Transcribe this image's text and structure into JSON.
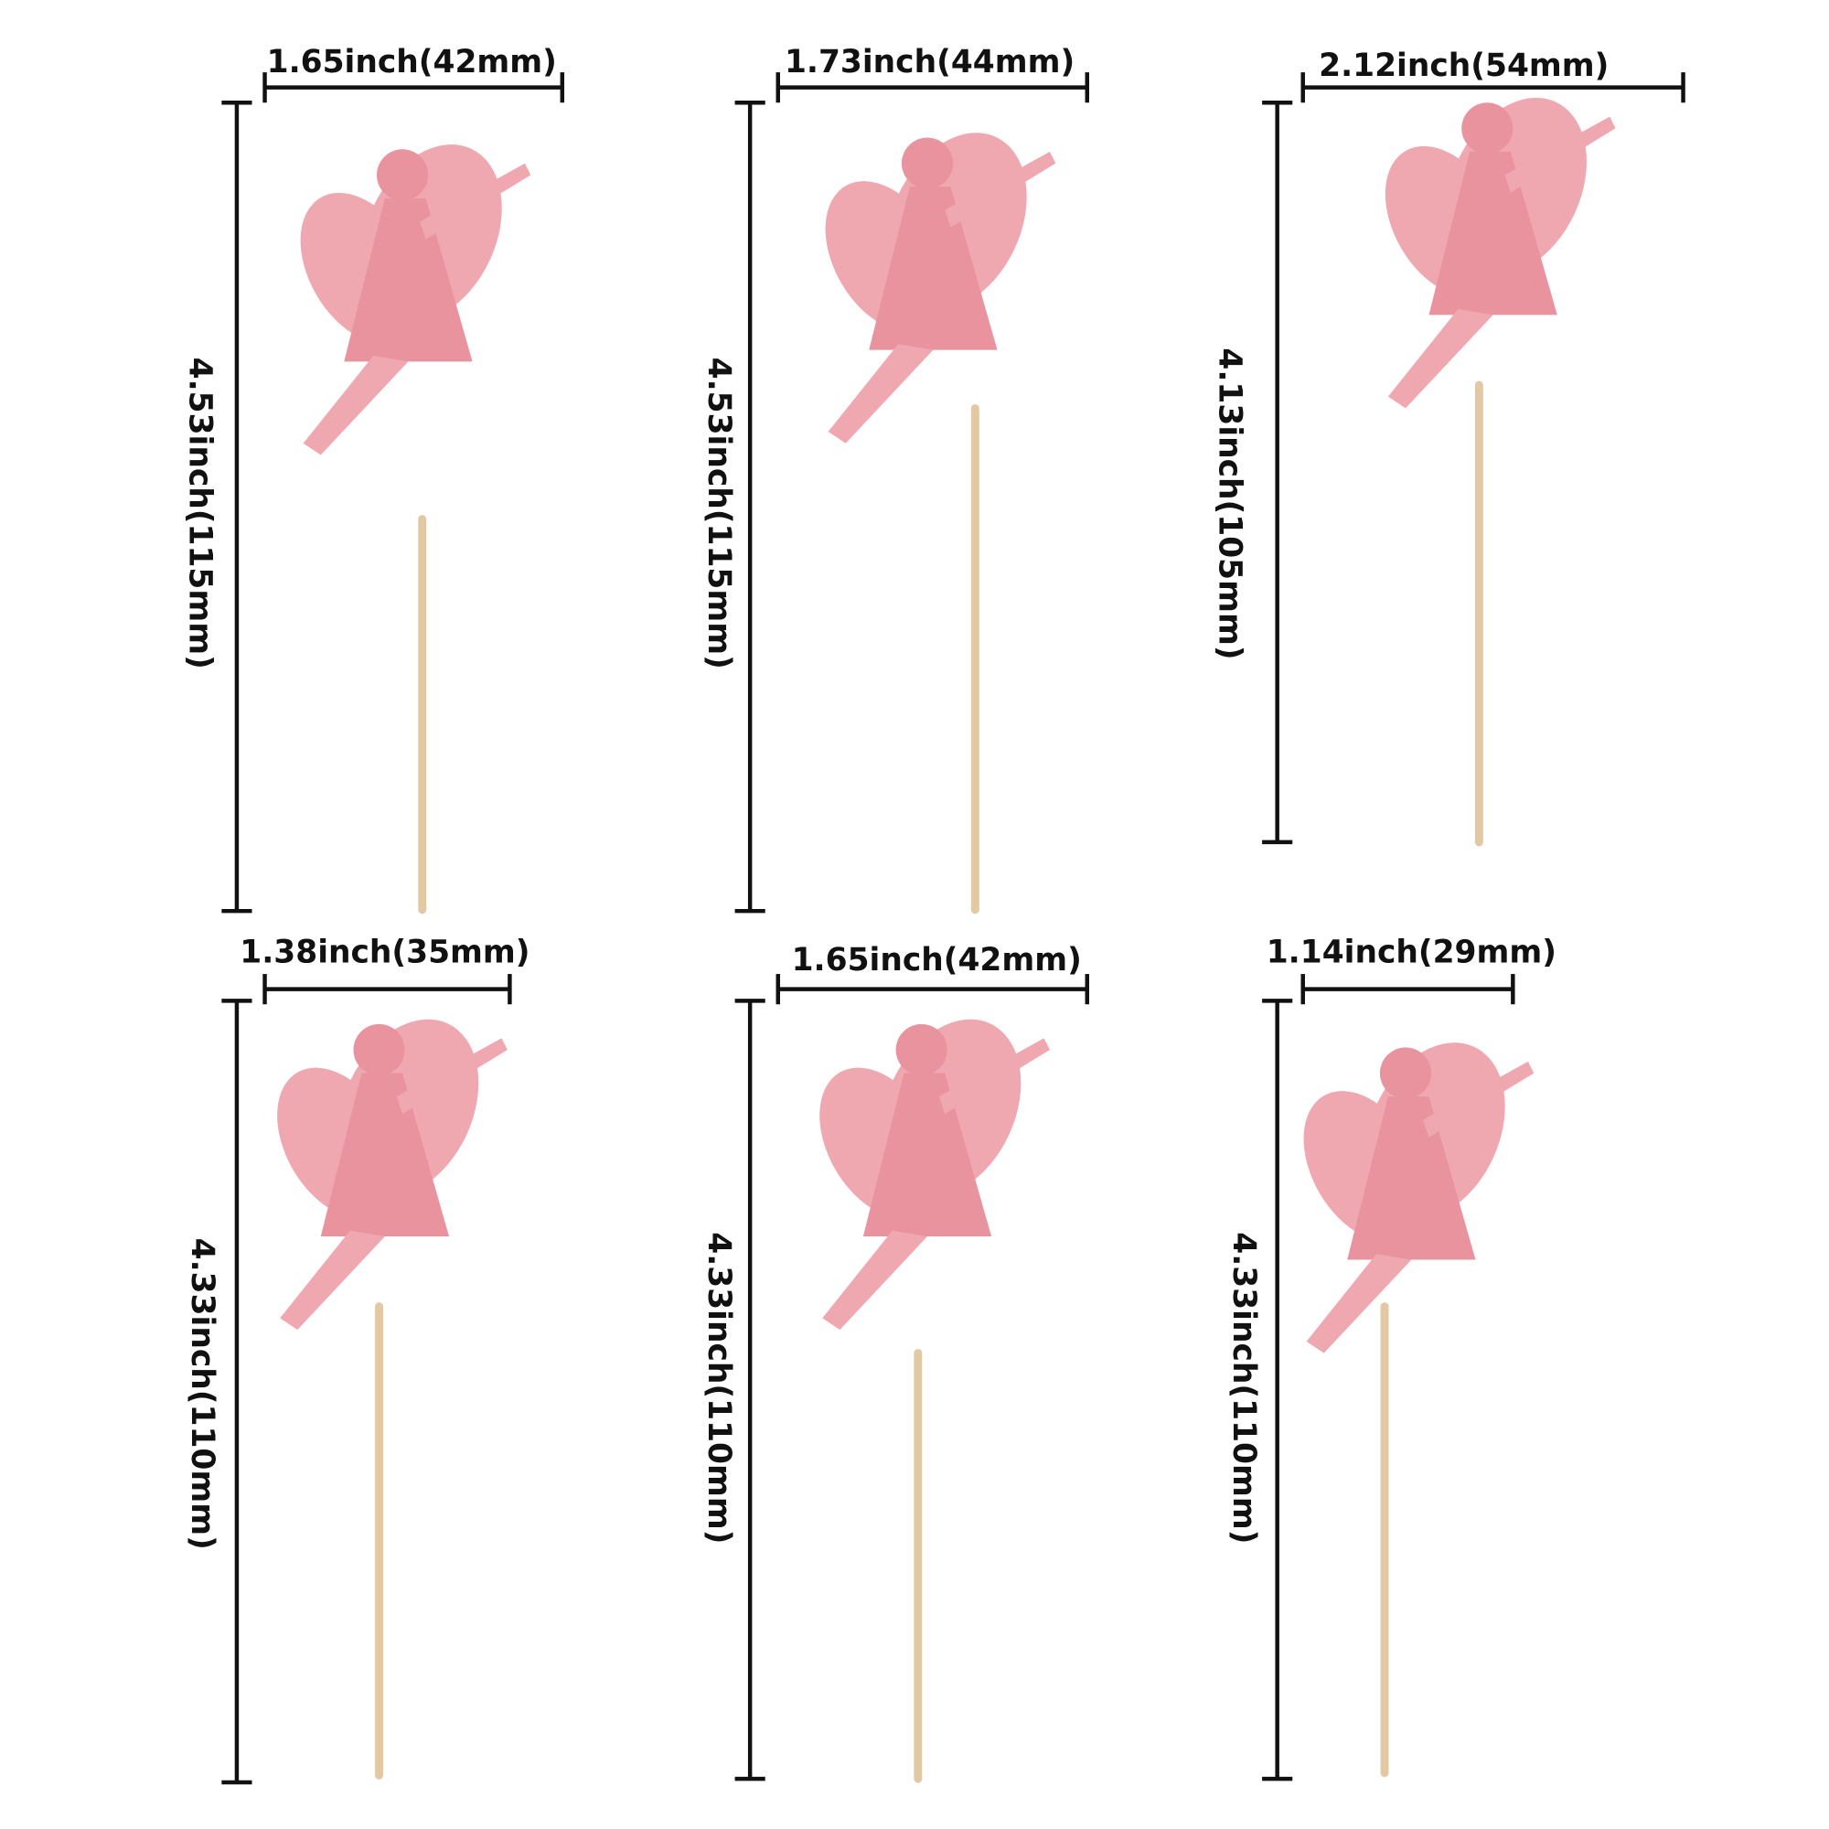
{
  "colors": {
    "glitter": "#f0a8b0",
    "glitter_shade": "#e8939e",
    "stick": "#e3c9a3",
    "dimension_lines": "#111111"
  },
  "toppers": [
    {
      "shape": "fairy sitting on mushroom with butterfly",
      "width_label": "1.65inch(42mm)",
      "height_label": "4.53inch(115mm)"
    },
    {
      "shape": "flying fairy with open wings",
      "width_label": "1.73inch(44mm)",
      "height_label": "4.53inch(115mm)"
    },
    {
      "shape": "sitting fairy with butterfly wings",
      "width_label": "2.12inch(54mm)",
      "height_label": "4.13inch(105mm)"
    },
    {
      "shape": "kneeling fairy",
      "width_label": "1.38inch(35mm)",
      "height_label": "4.33inch(110mm)"
    },
    {
      "shape": "fairy reaching forward",
      "width_label": "1.65inch(42mm)",
      "height_label": "4.33inch(110mm)"
    },
    {
      "shape": "dancing fairy with raised arm",
      "width_label": "1.14inch(29mm)",
      "height_label": "4.33inch(110mm)"
    }
  ]
}
